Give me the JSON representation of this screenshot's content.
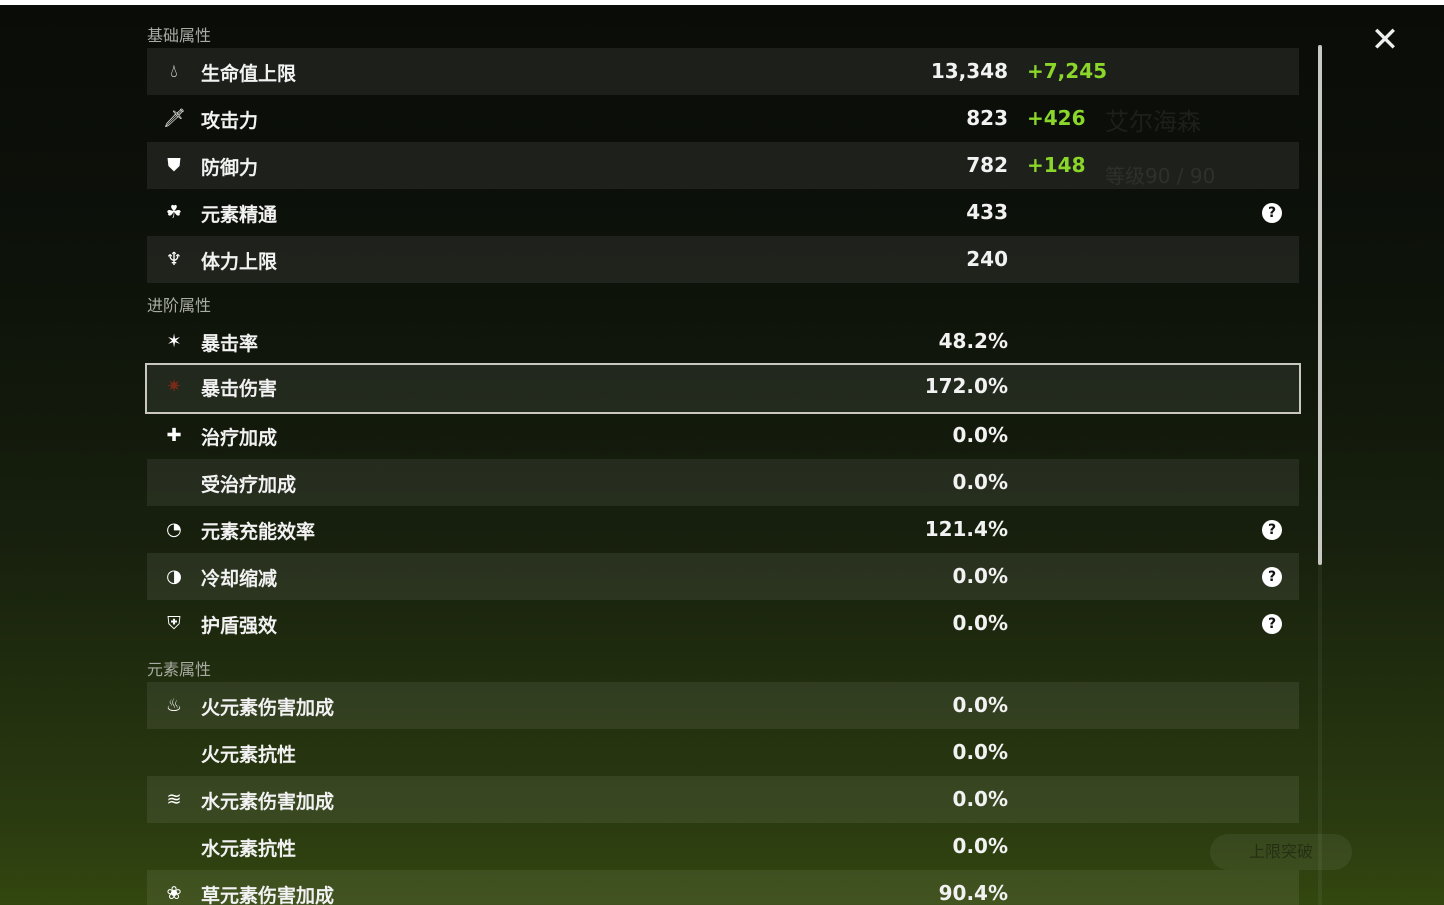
{
  "background": {
    "character_name": "艾尔海森",
    "level": "等级90 / 90",
    "ascend_button": "上限突破"
  },
  "colors": {
    "bonus": "#8bd62a",
    "highlight_border": "#c8c8c0"
  },
  "sections": [
    {
      "title": "基础属性",
      "rows": [
        {
          "icon": "hp-drop-icon",
          "label": "生命值上限",
          "value": "13,348",
          "bonus": "+7,245"
        },
        {
          "icon": "sword-icon",
          "label": "攻击力",
          "value": "823",
          "bonus": "+426"
        },
        {
          "icon": "shield-icon",
          "label": "防御力",
          "value": "782",
          "bonus": "+148"
        },
        {
          "icon": "elemental-mastery-icon",
          "label": "元素精通",
          "value": "433",
          "help": true
        },
        {
          "icon": "stamina-icon",
          "label": "体力上限",
          "value": "240"
        }
      ]
    },
    {
      "title": "进阶属性",
      "rows": [
        {
          "icon": "crit-rate-icon",
          "label": "暴击率",
          "value": "48.2%"
        },
        {
          "icon": "crit-dmg-icon",
          "label": "暴击伤害",
          "value": "172.0%",
          "selected": true
        },
        {
          "icon": "healing-icon",
          "label": "治疗加成",
          "value": "0.0%"
        },
        {
          "icon": "",
          "label": "受治疗加成",
          "value": "0.0%"
        },
        {
          "icon": "energy-recharge-icon",
          "label": "元素充能效率",
          "value": "121.4%",
          "help": true
        },
        {
          "icon": "cooldown-icon",
          "label": "冷却缩减",
          "value": "0.0%",
          "help": true
        },
        {
          "icon": "shield-strength-icon",
          "label": "护盾强效",
          "value": "0.0%",
          "help": true
        }
      ]
    },
    {
      "title": "元素属性",
      "rows": [
        {
          "icon": "pyro-icon",
          "label": "火元素伤害加成",
          "value": "0.0%"
        },
        {
          "icon": "",
          "label": "火元素抗性",
          "value": "0.0%"
        },
        {
          "icon": "hydro-icon",
          "label": "水元素伤害加成",
          "value": "0.0%"
        },
        {
          "icon": "",
          "label": "水元素抗性",
          "value": "0.0%"
        },
        {
          "icon": "dendro-icon",
          "label": "草元素伤害加成",
          "value": "90.4%"
        }
      ]
    }
  ]
}
